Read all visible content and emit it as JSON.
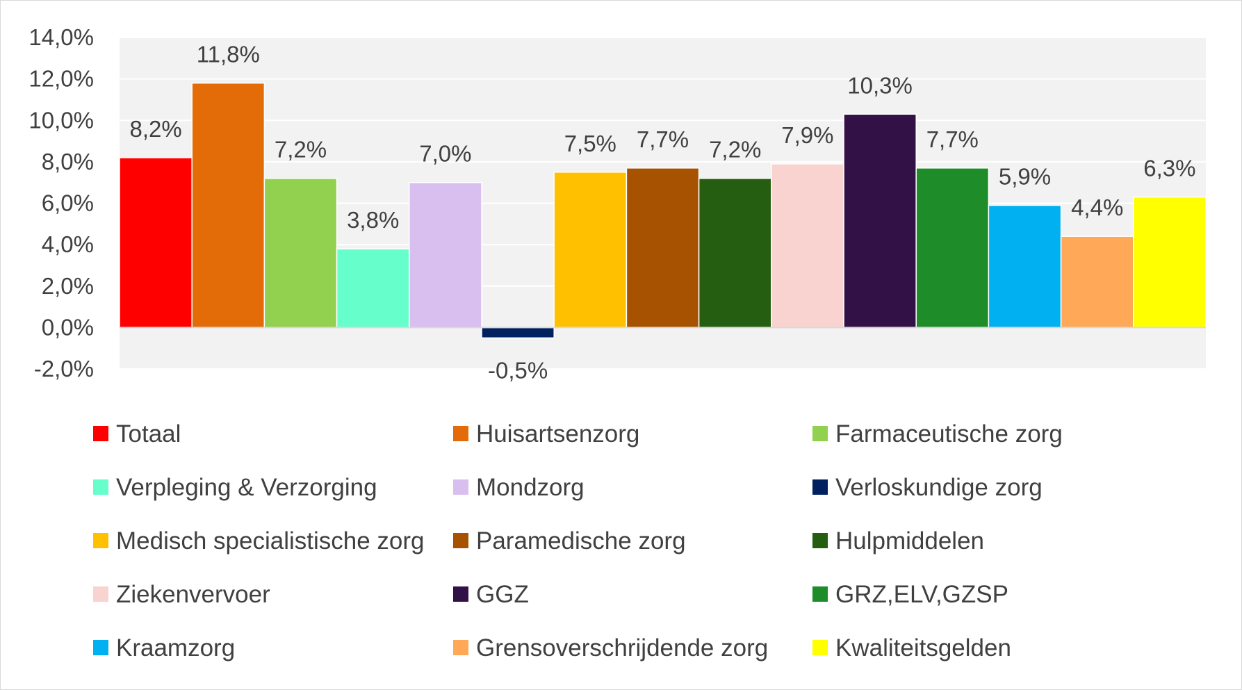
{
  "chart_data": {
    "type": "bar",
    "title": "",
    "xlabel": "",
    "ylabel": "",
    "ylim": [
      -2.0,
      14.0
    ],
    "y_ticks": [
      "-2,0%",
      "0,0%",
      "2,0%",
      "4,0%",
      "6,0%",
      "8,0%",
      "10,0%",
      "12,0%",
      "14,0%"
    ],
    "y_tick_values": [
      -2,
      0,
      2,
      4,
      6,
      8,
      10,
      12,
      14
    ],
    "grid": true,
    "legend_position": "bottom",
    "plot_background": "#f2f2f2",
    "series": [
      {
        "name": "Totaal",
        "value": 8.2,
        "label": "8,2%",
        "color": "#ff0000"
      },
      {
        "name": "Huisartsenzorg",
        "value": 11.8,
        "label": "11,8%",
        "color": "#e36c09"
      },
      {
        "name": "Farmaceutische zorg",
        "value": 7.2,
        "label": "7,2%",
        "color": "#92d050"
      },
      {
        "name": "Verpleging & Verzorging",
        "value": 3.8,
        "label": "3,8%",
        "color": "#66ffcc"
      },
      {
        "name": "Mondzorg",
        "value": 7.0,
        "label": "7,0%",
        "color": "#d9bfef"
      },
      {
        "name": "Verloskundige zorg",
        "value": -0.5,
        "label": "-0,5%",
        "color": "#002060"
      },
      {
        "name": "Medisch specialistische zorg",
        "value": 7.5,
        "label": "7,5%",
        "color": "#ffc000"
      },
      {
        "name": "Paramedische zorg",
        "value": 7.7,
        "label": "7,7%",
        "color": "#a65200"
      },
      {
        "name": "Hulpmiddelen",
        "value": 7.2,
        "label": "7,2%",
        "color": "#255e10"
      },
      {
        "name": "Ziekenvervoer",
        "value": 7.9,
        "label": "7,9%",
        "color": "#f8d3cf"
      },
      {
        "name": "GGZ",
        "value": 10.3,
        "label": "10,3%",
        "color": "#321146"
      },
      {
        "name": "GRZ,ELV,GZSP",
        "value": 7.7,
        "label": "7,7%",
        "color": "#1e8c28"
      },
      {
        "name": "Kraamzorg",
        "value": 5.9,
        "label": "5,9%",
        "color": "#00b0f0"
      },
      {
        "name": "Grensoverschrijdende zorg",
        "value": 4.4,
        "label": "4,4%",
        "color": "#ffa857"
      },
      {
        "name": "Kwaliteitsgelden",
        "value": 6.3,
        "label": "6,3%",
        "color": "#ffff00"
      }
    ]
  }
}
